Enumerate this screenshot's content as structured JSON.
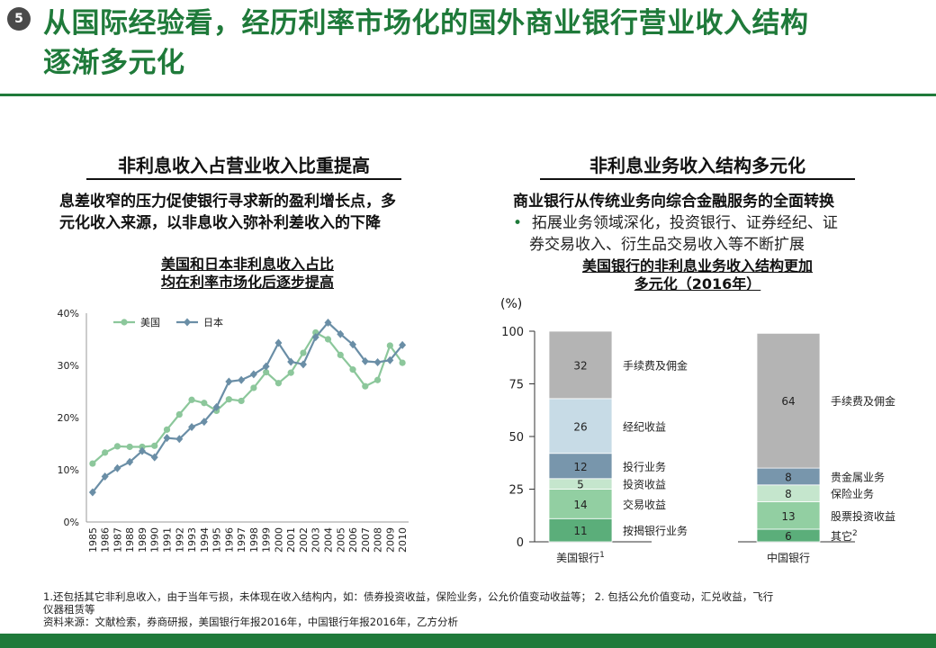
{
  "slide_number": "5",
  "title_line1": "从国际经验看，经历利率市场化的国外商业银行营业收入结构",
  "title_line2": "逐渐多元化",
  "left": {
    "heading": "非利息收入占营业收入比重提高",
    "lead_line1": "息差收窄的压力促使银行寻求新的盈利增长点，多",
    "lead_line2": "元化收入来源，以非息收入弥补利差收入的下降",
    "chart_title_line1": "美国和日本非利息收入占比",
    "chart_title_line2": "均在利率市场化后逐步提高"
  },
  "right": {
    "heading": "非利息业务收入结构多元化",
    "lead": "商业银行从传统业务向综合金融服务的全面转换",
    "bullet_mark": "•",
    "bullet_line1": "拓展业务领域深化，投资银行、证券经纪、证",
    "bullet_line2": "券交易收入、衍生品交易收入等不断扩展",
    "chart_title_line1": "美国银行的非利息业务收入结构更加",
    "chart_title_line2": "多元化（2016年）",
    "unit": "(%)"
  },
  "chart_data": [
    {
      "type": "line",
      "title": "美国和日本非利息收入占比均在利率市场化后逐步提高",
      "x": [
        "1985",
        "1986",
        "1987",
        "1988",
        "1989",
        "1990",
        "1991",
        "1992",
        "1993",
        "1994",
        "1995",
        "1996",
        "1997",
        "1998",
        "1999",
        "2000",
        "2001",
        "2002",
        "2003",
        "2004",
        "2005",
        "2006",
        "2007",
        "2008",
        "2009",
        "2010"
      ],
      "series": [
        {
          "name": "美国",
          "color": "#8cc79b",
          "marker": "circle",
          "values": [
            11.2,
            13.3,
            14.5,
            14.4,
            14.4,
            14.6,
            17.7,
            20.6,
            23.4,
            22.8,
            21.3,
            23.5,
            23.2,
            25.7,
            28.7,
            26.6,
            28.6,
            32.4,
            36.3,
            35.0,
            32.0,
            29.2,
            26.0,
            27.2,
            33.8,
            30.5
          ]
        },
        {
          "name": "日本",
          "color": "#6a8ea6",
          "marker": "diamond",
          "values": [
            5.7,
            8.7,
            10.3,
            11.5,
            13.6,
            12.4,
            16.1,
            15.9,
            18.2,
            19.2,
            22.0,
            26.9,
            27.2,
            28.3,
            29.8,
            34.3,
            30.7,
            30.2,
            35.4,
            38.2,
            36.0,
            34.0,
            30.8,
            30.6,
            31.0,
            33.9
          ]
        }
      ],
      "ylim": [
        0,
        40
      ],
      "yticks": [
        "0%",
        "10%",
        "20%",
        "30%",
        "40%"
      ],
      "legend": "top-left"
    },
    {
      "type": "bar",
      "stacked": true,
      "title": "美国银行的非利息业务收入结构更加多元化（2016年）",
      "ylabel": "(%)",
      "ylim": [
        0,
        100
      ],
      "yticks": [
        "0",
        "25",
        "50",
        "75",
        "100"
      ],
      "categories": [
        "美国银行",
        "中国银行"
      ],
      "category_sup": [
        "1",
        ""
      ],
      "bars": [
        {
          "segments": [
            {
              "label": "按揭银行业务",
              "value": 11,
              "color": "#5bae7a"
            },
            {
              "label": "交易收益",
              "value": 14,
              "color": "#92cfa2"
            },
            {
              "label": "投资收益",
              "value": 5,
              "color": "#c5e6cd"
            },
            {
              "label": "投行业务",
              "value": 12,
              "color": "#7896ac"
            },
            {
              "label": "经纪收益",
              "value": 26,
              "color": "#c7dbe6"
            },
            {
              "label": "手续费及佣金",
              "value": 32,
              "color": "#b4b4b4"
            }
          ]
        },
        {
          "segments": [
            {
              "label": "其它",
              "label_sup": "2",
              "value": 6,
              "color": "#5bae7a"
            },
            {
              "label": "股票投资收益",
              "value": 13,
              "color": "#92cfa2"
            },
            {
              "label": "保险业务",
              "value": 8,
              "color": "#c5e6cd"
            },
            {
              "label": "贵金属业务",
              "value": 8,
              "color": "#7896ac"
            },
            {
              "label": "手续费及佣金",
              "value": 64,
              "color": "#b4b4b4"
            }
          ]
        }
      ]
    }
  ],
  "footnote_line1": "1.还包括其它非利息收入，由于当年亏损，未体现在收入结构内，如：债券投资收益，保险业务，公允价值变动收益等；  2. 包括公允价值变动，汇兑收益，飞行",
  "footnote_line2": "仪器租赁等",
  "source": "资料来源：文献检索，券商研报，美国银行年报2016年，中国银行年报2016年，乙方分析"
}
